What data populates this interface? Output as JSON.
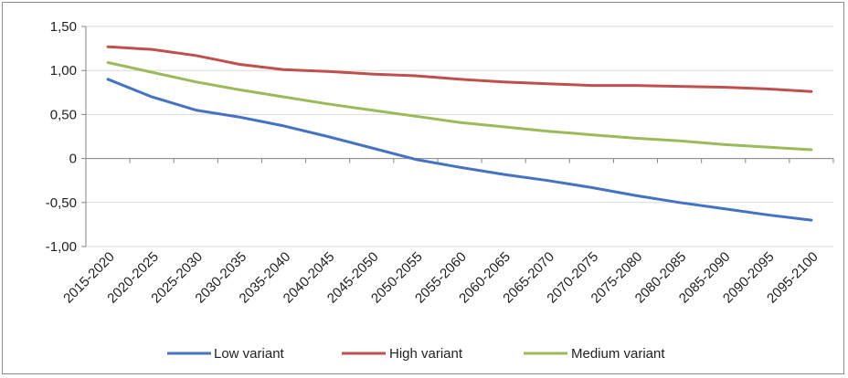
{
  "chart_data": {
    "type": "line",
    "title": "",
    "xlabel": "",
    "ylabel": "",
    "categories": [
      "2015-2020",
      "2020-2025",
      "2025-2030",
      "2030-2035",
      "2035-2040",
      "2040-2045",
      "2045-2050",
      "2050-2055",
      "2055-2060",
      "2060-2065",
      "2065-2070",
      "2070-2075",
      "2075-2080",
      "2080-2085",
      "2085-2090",
      "2090-2095",
      "2095-2100"
    ],
    "y_ticks": [
      {
        "value": 1.5,
        "label": "1,50"
      },
      {
        "value": 1.0,
        "label": "1,00"
      },
      {
        "value": 0.5,
        "label": "0,50"
      },
      {
        "value": 0.0,
        "label": "0"
      },
      {
        "value": -0.5,
        "label": "-0,50"
      },
      {
        "value": -1.0,
        "label": "-1,00"
      }
    ],
    "ylim": [
      -1.0,
      1.5
    ],
    "grid": "horizontal",
    "legend_position": "bottom",
    "series": [
      {
        "name": "Low variant",
        "color": "#4472c4",
        "values": [
          0.9,
          0.7,
          0.55,
          0.47,
          0.37,
          0.25,
          0.12,
          -0.01,
          -0.1,
          -0.18,
          -0.25,
          -0.33,
          -0.42,
          -0.5,
          -0.57,
          -0.64,
          -0.7
        ]
      },
      {
        "name": "High variant",
        "color": "#c0504d",
        "values": [
          1.27,
          1.24,
          1.17,
          1.07,
          1.01,
          0.99,
          0.96,
          0.94,
          0.9,
          0.87,
          0.85,
          0.83,
          0.83,
          0.82,
          0.81,
          0.79,
          0.76
        ]
      },
      {
        "name": "Medium variant",
        "color": "#9bbb59",
        "values": [
          1.09,
          0.98,
          0.87,
          0.78,
          0.7,
          0.62,
          0.55,
          0.48,
          0.41,
          0.36,
          0.31,
          0.27,
          0.23,
          0.2,
          0.16,
          0.13,
          0.1
        ]
      }
    ]
  }
}
